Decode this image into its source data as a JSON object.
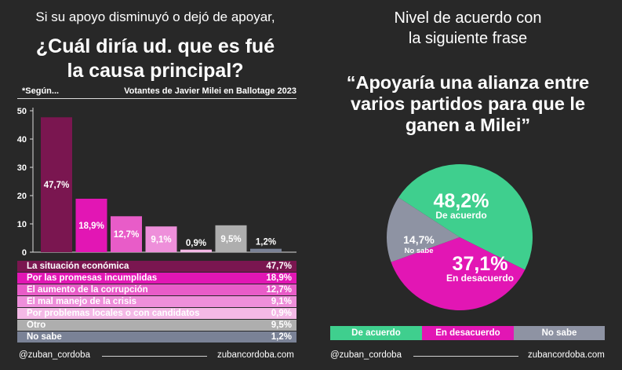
{
  "left": {
    "subtitle": "Si su apoyo disminuyó o dejó de apoyar,",
    "title_line1": "¿Cuál diría ud. que es fué",
    "title_line2": "la causa principal?",
    "note": "*Según...",
    "voters_label": "Votantes de Javier Milei en Ballotage 2023",
    "footer_handle": "@zuban_cordoba",
    "footer_site": "zubancordoba.com"
  },
  "right": {
    "subtitle_line1": "Nivel de acuerdo con",
    "subtitle_line2": "la siguiente frase",
    "quote_line1": "“Apoyaría una alianza entre",
    "quote_line2": "varios partidos para que le",
    "quote_line3": "ganen a Milei”",
    "footer_handle": "@zuban_cordoba",
    "footer_site": "zubancordoba.com"
  },
  "chart_data": [
    {
      "type": "bar",
      "categories": [
        "La situación económica",
        "Por las promesas incumplidas",
        "El aumento de la corrupción",
        "El mal manejo de la crisis",
        "Por problemas locales o con candidatos",
        "Otro",
        "No sabe"
      ],
      "values": [
        47.7,
        18.9,
        12.7,
        9.1,
        0.9,
        9.5,
        1.2
      ],
      "value_labels": [
        "47,7%",
        "18,9%",
        "12,7%",
        "9,1%",
        "0,9%",
        "9,5%",
        "1,2%"
      ],
      "colors": [
        "#7a1650",
        "#e216b4",
        "#e85cc8",
        "#ee8fda",
        "#f4b9e6",
        "#aeaeae",
        "#7a8296"
      ],
      "yticks": [
        "0",
        "10",
        "20",
        "30",
        "40",
        "50"
      ],
      "ylim": [
        0,
        50
      ],
      "legend_position": "bottom"
    },
    {
      "type": "pie",
      "labels": [
        "De acuerdo",
        "En desacuerdo",
        "No sabe"
      ],
      "values": [
        48.2,
        37.1,
        14.7
      ],
      "value_labels": [
        "48,2%",
        "37,1%",
        "14,7%"
      ],
      "colors": [
        "#3fcf8e",
        "#e216b4",
        "#8e93a3"
      ],
      "legend_position": "bottom"
    }
  ]
}
